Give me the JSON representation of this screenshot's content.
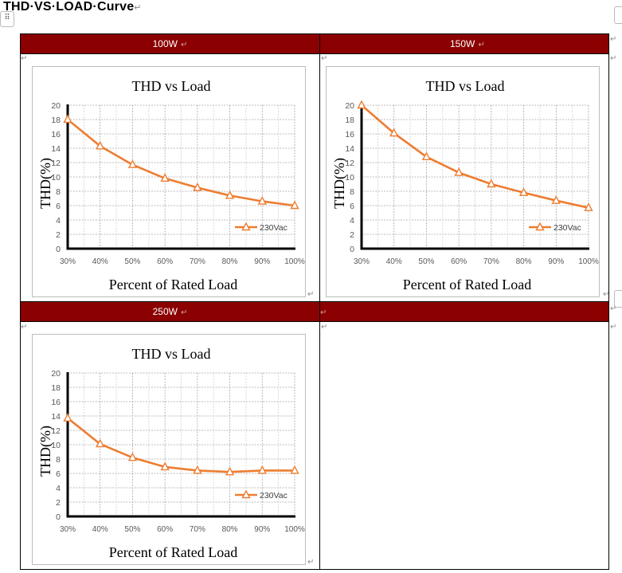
{
  "document": {
    "title": "THD·VS·LOAD·Curve",
    "paragraph_mark": "↵",
    "handle_icon": "⠿"
  },
  "table": {
    "headers": [
      {
        "label": "100W",
        "align": "center"
      },
      {
        "label": "150W",
        "align": "left"
      },
      {
        "label": "250W",
        "align": "center"
      },
      {
        "label": "",
        "align": "left"
      }
    ],
    "header_bg": "#8b0000"
  },
  "chart_data": [
    {
      "type": "line",
      "panel": "100W",
      "title": "THD vs Load",
      "xlabel": "Percent of Rated Load",
      "ylabel": "THD(%)",
      "categories": [
        "30%",
        "40%",
        "50%",
        "60%",
        "70%",
        "80%",
        "90%",
        "100%"
      ],
      "series": [
        {
          "name": "230Vac",
          "color": "#ed7d31",
          "marker": "triangle-open",
          "values": [
            18.0,
            14.3,
            11.7,
            9.8,
            8.5,
            7.4,
            6.6,
            6.0
          ]
        }
      ],
      "ylim": [
        0,
        20
      ],
      "yticks": [
        0,
        2,
        4,
        6,
        8,
        10,
        12,
        14,
        16,
        18,
        20
      ],
      "grid": true,
      "legend_position": "inside-lower-right"
    },
    {
      "type": "line",
      "panel": "150W",
      "title": "THD vs Load",
      "xlabel": "Percent of Rated Load",
      "ylabel": "THD(%)",
      "categories": [
        "30%",
        "40%",
        "50%",
        "60%",
        "70%",
        "80%",
        "90%",
        "100%"
      ],
      "series": [
        {
          "name": "230Vac",
          "color": "#ed7d31",
          "marker": "triangle-open",
          "values": [
            20.0,
            16.1,
            12.8,
            10.6,
            9.0,
            7.8,
            6.7,
            5.7
          ]
        }
      ],
      "ylim": [
        0,
        20
      ],
      "yticks": [
        0,
        2,
        4,
        6,
        8,
        10,
        12,
        14,
        16,
        18,
        20
      ],
      "grid": true,
      "legend_position": "inside-lower-right"
    },
    {
      "type": "line",
      "panel": "250W",
      "title": "THD vs Load",
      "xlabel": "Percent of Rated Load",
      "ylabel": "THD(%)",
      "categories": [
        "30%",
        "40%",
        "50%",
        "60%",
        "70%",
        "80%",
        "90%",
        "100%"
      ],
      "series": [
        {
          "name": "230Vac",
          "color": "#ed7d31",
          "marker": "triangle-open",
          "values": [
            13.7,
            10.1,
            8.2,
            6.9,
            6.4,
            6.2,
            6.4,
            6.4
          ]
        }
      ],
      "ylim": [
        0,
        20
      ],
      "yticks": [
        0,
        2,
        4,
        6,
        8,
        10,
        12,
        14,
        16,
        18,
        20
      ],
      "grid": true,
      "legend_position": "inside-lower-right"
    }
  ]
}
